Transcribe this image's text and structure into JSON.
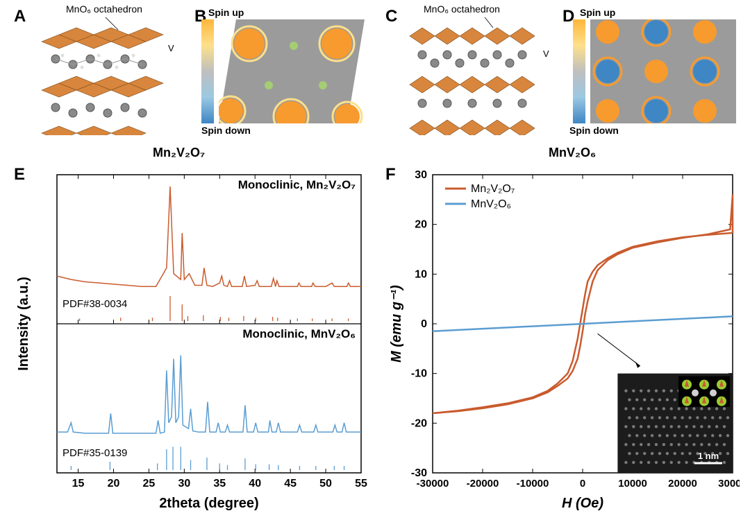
{
  "panelA": {
    "label": "A",
    "annotation1": "MnO₆ octahedron",
    "annotation2": "V",
    "octa_color": "#d8863d",
    "atom_v": "#8a8a8a",
    "atom_o": "#cccccc"
  },
  "panelB": {
    "label": "B",
    "spinup": "Spin up",
    "spindown": "Spin down",
    "bg": "#9b9b9b",
    "spot_color": "#f79b2e",
    "ring_color": "#fee08b",
    "dot_color": "#a6d96a"
  },
  "panelC": {
    "label": "C",
    "annotation1": "MnO₆ octahedron",
    "annotation2": "V",
    "octa_color": "#d8863d",
    "atom_v": "#8a8a8a",
    "atom_o": "#cccccc"
  },
  "panelD": {
    "label": "D",
    "spinup": "Spin up",
    "spindown": "Spin down",
    "bg": "#9b9b9b",
    "up_color": "#f79b2e",
    "down_color": "#3e86c4"
  },
  "compound_left": "Mn₂V₂O₇",
  "compound_right": "MnV₂O₆",
  "panelE": {
    "label": "E",
    "top_title": "Monoclinic, Mn₂V₂O₇",
    "bottom_title": "Monoclinic, MnV₂O₆",
    "pdf1": "PDF#38-0034",
    "pdf2": "PDF#35-0139",
    "ylabel": "Intensity (a.u.)",
    "xlabel": "2theta (degree)",
    "color1": "#c95b2e",
    "color2": "#5a9dd2",
    "xmin": 12,
    "xmax": 55,
    "xticks": [
      15,
      20,
      25,
      30,
      35,
      40,
      45,
      50,
      55
    ],
    "ref1_peaks": [
      {
        "x": 15.2,
        "h": 3
      },
      {
        "x": 21.0,
        "h": 4
      },
      {
        "x": 25.5,
        "h": 4
      },
      {
        "x": 28.0,
        "h": 30
      },
      {
        "x": 29.7,
        "h": 20
      },
      {
        "x": 30.5,
        "h": 6
      },
      {
        "x": 32.7,
        "h": 7
      },
      {
        "x": 35.1,
        "h": 5
      },
      {
        "x": 36.3,
        "h": 4
      },
      {
        "x": 38.4,
        "h": 6
      },
      {
        "x": 40.1,
        "h": 4
      },
      {
        "x": 42.5,
        "h": 5
      },
      {
        "x": 43.2,
        "h": 4
      },
      {
        "x": 46.0,
        "h": 3
      },
      {
        "x": 48.1,
        "h": 3
      },
      {
        "x": 50.9,
        "h": 3
      },
      {
        "x": 53.2,
        "h": 3
      }
    ],
    "ref2_peaks": [
      {
        "x": 14.0,
        "h": 5
      },
      {
        "x": 19.5,
        "h": 10
      },
      {
        "x": 26.2,
        "h": 8
      },
      {
        "x": 27.5,
        "h": 25
      },
      {
        "x": 28.4,
        "h": 28
      },
      {
        "x": 29.5,
        "h": 28
      },
      {
        "x": 30.9,
        "h": 12
      },
      {
        "x": 33.2,
        "h": 15
      },
      {
        "x": 35.0,
        "h": 8
      },
      {
        "x": 36.1,
        "h": 6
      },
      {
        "x": 38.6,
        "h": 14
      },
      {
        "x": 40.1,
        "h": 7
      },
      {
        "x": 42.0,
        "h": 7
      },
      {
        "x": 43.3,
        "h": 6
      },
      {
        "x": 46.3,
        "h": 5
      },
      {
        "x": 48.6,
        "h": 5
      },
      {
        "x": 51.2,
        "h": 5
      },
      {
        "x": 52.6,
        "h": 5
      }
    ],
    "trace1": [
      [
        12,
        18
      ],
      [
        14,
        15
      ],
      [
        16,
        13
      ],
      [
        18,
        12
      ],
      [
        20,
        11
      ],
      [
        22,
        10
      ],
      [
        24,
        9
      ],
      [
        26,
        9
      ],
      [
        27.5,
        25
      ],
      [
        28.0,
        95
      ],
      [
        28.5,
        20
      ],
      [
        29.5,
        15
      ],
      [
        29.7,
        55
      ],
      [
        30.0,
        15
      ],
      [
        30.7,
        20
      ],
      [
        31.5,
        10
      ],
      [
        32.5,
        10
      ],
      [
        32.8,
        25
      ],
      [
        33.2,
        10
      ],
      [
        34,
        9
      ],
      [
        35,
        12
      ],
      [
        35.3,
        18
      ],
      [
        35.6,
        10
      ],
      [
        36.1,
        9
      ],
      [
        36.4,
        14
      ],
      [
        36.7,
        9
      ],
      [
        37.5,
        9
      ],
      [
        38.2,
        9
      ],
      [
        38.5,
        18
      ],
      [
        38.8,
        9
      ],
      [
        40,
        10
      ],
      [
        40.3,
        14
      ],
      [
        40.6,
        9
      ],
      [
        41.5,
        9
      ],
      [
        42.3,
        9
      ],
      [
        42.6,
        16
      ],
      [
        42.9,
        9
      ],
      [
        43.1,
        14
      ],
      [
        43.4,
        9
      ],
      [
        45,
        9
      ],
      [
        46,
        9
      ],
      [
        46.2,
        12
      ],
      [
        46.5,
        9
      ],
      [
        48,
        9
      ],
      [
        48.2,
        12
      ],
      [
        48.5,
        9
      ],
      [
        50,
        9
      ],
      [
        50.9,
        12
      ],
      [
        51.2,
        9
      ],
      [
        52,
        9
      ],
      [
        53,
        9
      ],
      [
        53.2,
        12
      ],
      [
        53.5,
        9
      ],
      [
        55,
        9
      ]
    ],
    "trace2": [
      [
        12,
        12
      ],
      [
        13.5,
        12
      ],
      [
        14.0,
        20
      ],
      [
        14.3,
        12
      ],
      [
        16,
        11
      ],
      [
        18,
        11
      ],
      [
        19.3,
        11
      ],
      [
        19.6,
        28
      ],
      [
        19.9,
        11
      ],
      [
        22,
        11
      ],
      [
        24,
        11
      ],
      [
        26,
        11
      ],
      [
        26.3,
        22
      ],
      [
        26.6,
        11
      ],
      [
        27.2,
        12
      ],
      [
        27.5,
        65
      ],
      [
        27.8,
        20
      ],
      [
        28.2,
        25
      ],
      [
        28.5,
        75
      ],
      [
        28.8,
        20
      ],
      [
        29.2,
        25
      ],
      [
        29.5,
        78
      ],
      [
        29.8,
        18
      ],
      [
        30.6,
        15
      ],
      [
        30.9,
        32
      ],
      [
        31.2,
        13
      ],
      [
        32,
        12
      ],
      [
        33.0,
        12
      ],
      [
        33.3,
        38
      ],
      [
        33.6,
        12
      ],
      [
        34.5,
        12
      ],
      [
        34.8,
        20
      ],
      [
        35.1,
        12
      ],
      [
        35.8,
        12
      ],
      [
        36.1,
        18
      ],
      [
        36.4,
        12
      ],
      [
        37.5,
        12
      ],
      [
        38.3,
        12
      ],
      [
        38.6,
        35
      ],
      [
        38.9,
        12
      ],
      [
        39.8,
        12
      ],
      [
        40.1,
        20
      ],
      [
        40.4,
        12
      ],
      [
        41.5,
        12
      ],
      [
        41.9,
        12
      ],
      [
        42.1,
        22
      ],
      [
        42.4,
        12
      ],
      [
        43.0,
        12
      ],
      [
        43.3,
        20
      ],
      [
        43.6,
        12
      ],
      [
        45,
        12
      ],
      [
        46.0,
        12
      ],
      [
        46.3,
        18
      ],
      [
        46.6,
        12
      ],
      [
        48.3,
        12
      ],
      [
        48.6,
        18
      ],
      [
        48.9,
        12
      ],
      [
        50,
        12
      ],
      [
        51.0,
        12
      ],
      [
        51.3,
        18
      ],
      [
        51.6,
        12
      ],
      [
        52.3,
        12
      ],
      [
        52.6,
        20
      ],
      [
        52.9,
        12
      ],
      [
        54,
        12
      ],
      [
        55,
        12
      ]
    ]
  },
  "panelF": {
    "label": "F",
    "ylabel": "M (emu g⁻¹)",
    "xlabel": "H (Oe)",
    "legend1": "Mn₂V₂O₇",
    "legend2": "MnV₂O₆",
    "color1": "#c95b2e",
    "color2": "#5a9dd2",
    "ymin": -30,
    "ymax": 30,
    "xmin": -30000,
    "xmax": 30000,
    "yticks": [
      -30,
      -20,
      -10,
      0,
      10,
      20,
      30
    ],
    "xticks": [
      -30000,
      -20000,
      -10000,
      0,
      10000,
      20000,
      30000
    ],
    "trace1_fwd": [
      [
        -30000,
        -18
      ],
      [
        -25000,
        -17.5
      ],
      [
        -20000,
        -16.8
      ],
      [
        -15000,
        -16
      ],
      [
        -10000,
        -14.8
      ],
      [
        -7000,
        -13.5
      ],
      [
        -5000,
        -12
      ],
      [
        -3000,
        -10
      ],
      [
        -2000,
        -7.5
      ],
      [
        -1000,
        -3
      ],
      [
        -500,
        0
      ],
      [
        0,
        3
      ],
      [
        500,
        6
      ],
      [
        1000,
        8.5
      ],
      [
        2000,
        10.5
      ],
      [
        3000,
        11.8
      ],
      [
        5000,
        13.2
      ],
      [
        7000,
        14.3
      ],
      [
        10000,
        15.5
      ],
      [
        15000,
        16.6
      ],
      [
        20000,
        17.4
      ],
      [
        25000,
        17.9
      ],
      [
        30000,
        18.3
      ]
    ],
    "trace1_rev": [
      [
        30000,
        18.3
      ],
      [
        30000,
        26
      ],
      [
        29500,
        19
      ],
      [
        25000,
        18
      ],
      [
        20000,
        17.3
      ],
      [
        15000,
        16.4
      ],
      [
        10000,
        15.3
      ],
      [
        7000,
        14
      ],
      [
        5000,
        12.8
      ],
      [
        3000,
        10.8
      ],
      [
        2000,
        8.5
      ],
      [
        1000,
        4.5
      ],
      [
        500,
        2
      ],
      [
        0,
        -1.5
      ],
      [
        -500,
        -4.5
      ],
      [
        -1000,
        -7
      ],
      [
        -2000,
        -9.5
      ],
      [
        -3000,
        -11
      ],
      [
        -5000,
        -12.5
      ],
      [
        -7000,
        -13.8
      ],
      [
        -10000,
        -15
      ],
      [
        -15000,
        -16.2
      ],
      [
        -20000,
        -17
      ],
      [
        -25000,
        -17.6
      ],
      [
        -30000,
        -18
      ]
    ],
    "trace2": [
      [
        -30000,
        -1.5
      ],
      [
        30000,
        1.5
      ]
    ],
    "inset_scalebar": "1 nm"
  }
}
